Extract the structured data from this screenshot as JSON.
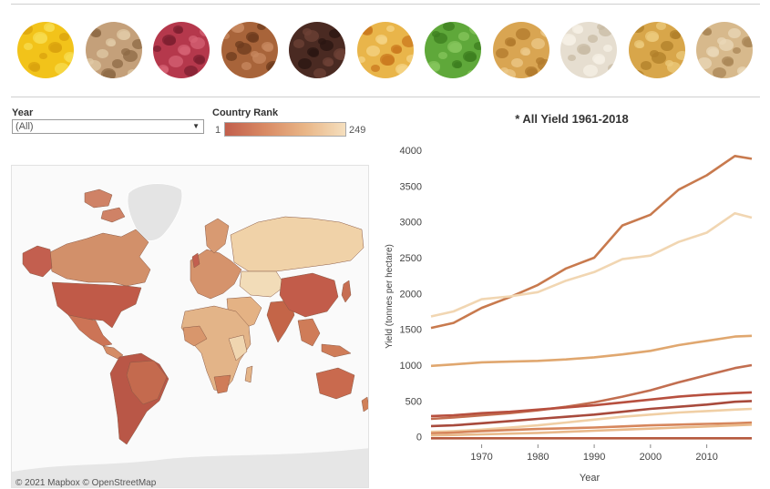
{
  "crop_icons": [
    {
      "name": "bananas-icon",
      "colors": [
        "#f2c31a",
        "#d9a20d",
        "#f7dc50"
      ]
    },
    {
      "name": "grain-icon",
      "colors": [
        "#c4a07a",
        "#8e6a45",
        "#e0c9a6"
      ]
    },
    {
      "name": "kidney-beans-icon",
      "colors": [
        "#b5384c",
        "#7e1f30",
        "#d66274"
      ]
    },
    {
      "name": "cassava-icon",
      "colors": [
        "#a8643a",
        "#6e3b1e",
        "#c88860"
      ]
    },
    {
      "name": "coffee-beans-icon",
      "colors": [
        "#4a2a22",
        "#2a1612",
        "#6e4236"
      ]
    },
    {
      "name": "maize-icon",
      "colors": [
        "#e9b54a",
        "#c9781e",
        "#f4d486"
      ]
    },
    {
      "name": "peas-icon",
      "colors": [
        "#5fa83a",
        "#3c7d1f",
        "#86c65c"
      ]
    },
    {
      "name": "potatoes-icon",
      "colors": [
        "#d9a552",
        "#b07a2c",
        "#ecc98a"
      ]
    },
    {
      "name": "rice-icon",
      "colors": [
        "#e6ded0",
        "#c8bba4",
        "#f5f0e6"
      ]
    },
    {
      "name": "soybeans-icon",
      "colors": [
        "#d8a64a",
        "#b07f2a",
        "#ecc97c"
      ]
    },
    {
      "name": "wheat-icon",
      "colors": [
        "#d7b98c",
        "#a98655",
        "#ead8b8"
      ]
    }
  ],
  "filters": {
    "year_label": "Year",
    "year_value": "(All)",
    "rank_label": "Country Rank",
    "rank_min": "1",
    "rank_max": "249"
  },
  "map": {
    "attribution": "© 2021 Mapbox  © OpenStreetMap"
  },
  "chart_data": {
    "type": "line",
    "title": "* All Yield 1961-2018",
    "xlabel": "Year",
    "ylabel": "Yield (tonnes per hectare)",
    "xlim": [
      1961,
      2018
    ],
    "ylim": [
      0,
      4000
    ],
    "xticks": [
      1970,
      1980,
      1990,
      2000,
      2010
    ],
    "yticks": [
      0,
      500,
      1000,
      1500,
      2000,
      2500,
      3000,
      3500,
      4000
    ],
    "grid": false,
    "x": [
      1961,
      1965,
      1970,
      1975,
      1980,
      1985,
      1990,
      1995,
      2000,
      2005,
      2010,
      2015,
      2018
    ],
    "series": [
      {
        "color": "#c87a4e",
        "values": [
          1520,
          1590,
          1800,
          1950,
          2120,
          2350,
          2500,
          2950,
          3100,
          3450,
          3650,
          3920,
          3880
        ]
      },
      {
        "color": "#f1d6b2",
        "values": [
          1680,
          1750,
          1920,
          1960,
          2020,
          2180,
          2300,
          2480,
          2530,
          2720,
          2850,
          3120,
          3060
        ]
      },
      {
        "color": "#e0a76f",
        "values": [
          990,
          1010,
          1040,
          1050,
          1060,
          1080,
          1110,
          1150,
          1200,
          1280,
          1340,
          1400,
          1410
        ]
      },
      {
        "color": "#c26e50",
        "values": [
          250,
          270,
          300,
          330,
          370,
          420,
          480,
          560,
          650,
          760,
          860,
          960,
          1000
        ]
      },
      {
        "color": "#b7503f",
        "values": [
          290,
          300,
          330,
          350,
          380,
          410,
          440,
          480,
          520,
          560,
          590,
          610,
          620
        ]
      },
      {
        "color": "#a84a3c",
        "values": [
          150,
          160,
          190,
          220,
          250,
          280,
          310,
          350,
          390,
          420,
          450,
          490,
          500
        ]
      },
      {
        "color": "#f0cfa5",
        "values": [
          70,
          80,
          100,
          130,
          160,
          200,
          240,
          280,
          310,
          340,
          360,
          380,
          390
        ]
      },
      {
        "color": "#d6865c",
        "values": [
          50,
          60,
          80,
          95,
          110,
          120,
          130,
          145,
          160,
          170,
          180,
          190,
          200
        ]
      },
      {
        "color": "#e9b98a",
        "values": [
          20,
          25,
          35,
          45,
          55,
          70,
          85,
          100,
          115,
          130,
          145,
          160,
          170
        ]
      },
      {
        "color": "#b55a3f",
        "values": [
          -20,
          -20,
          -20,
          -20,
          -20,
          -20,
          -20,
          -20,
          -20,
          -20,
          -20,
          -20,
          -20
        ]
      }
    ]
  }
}
